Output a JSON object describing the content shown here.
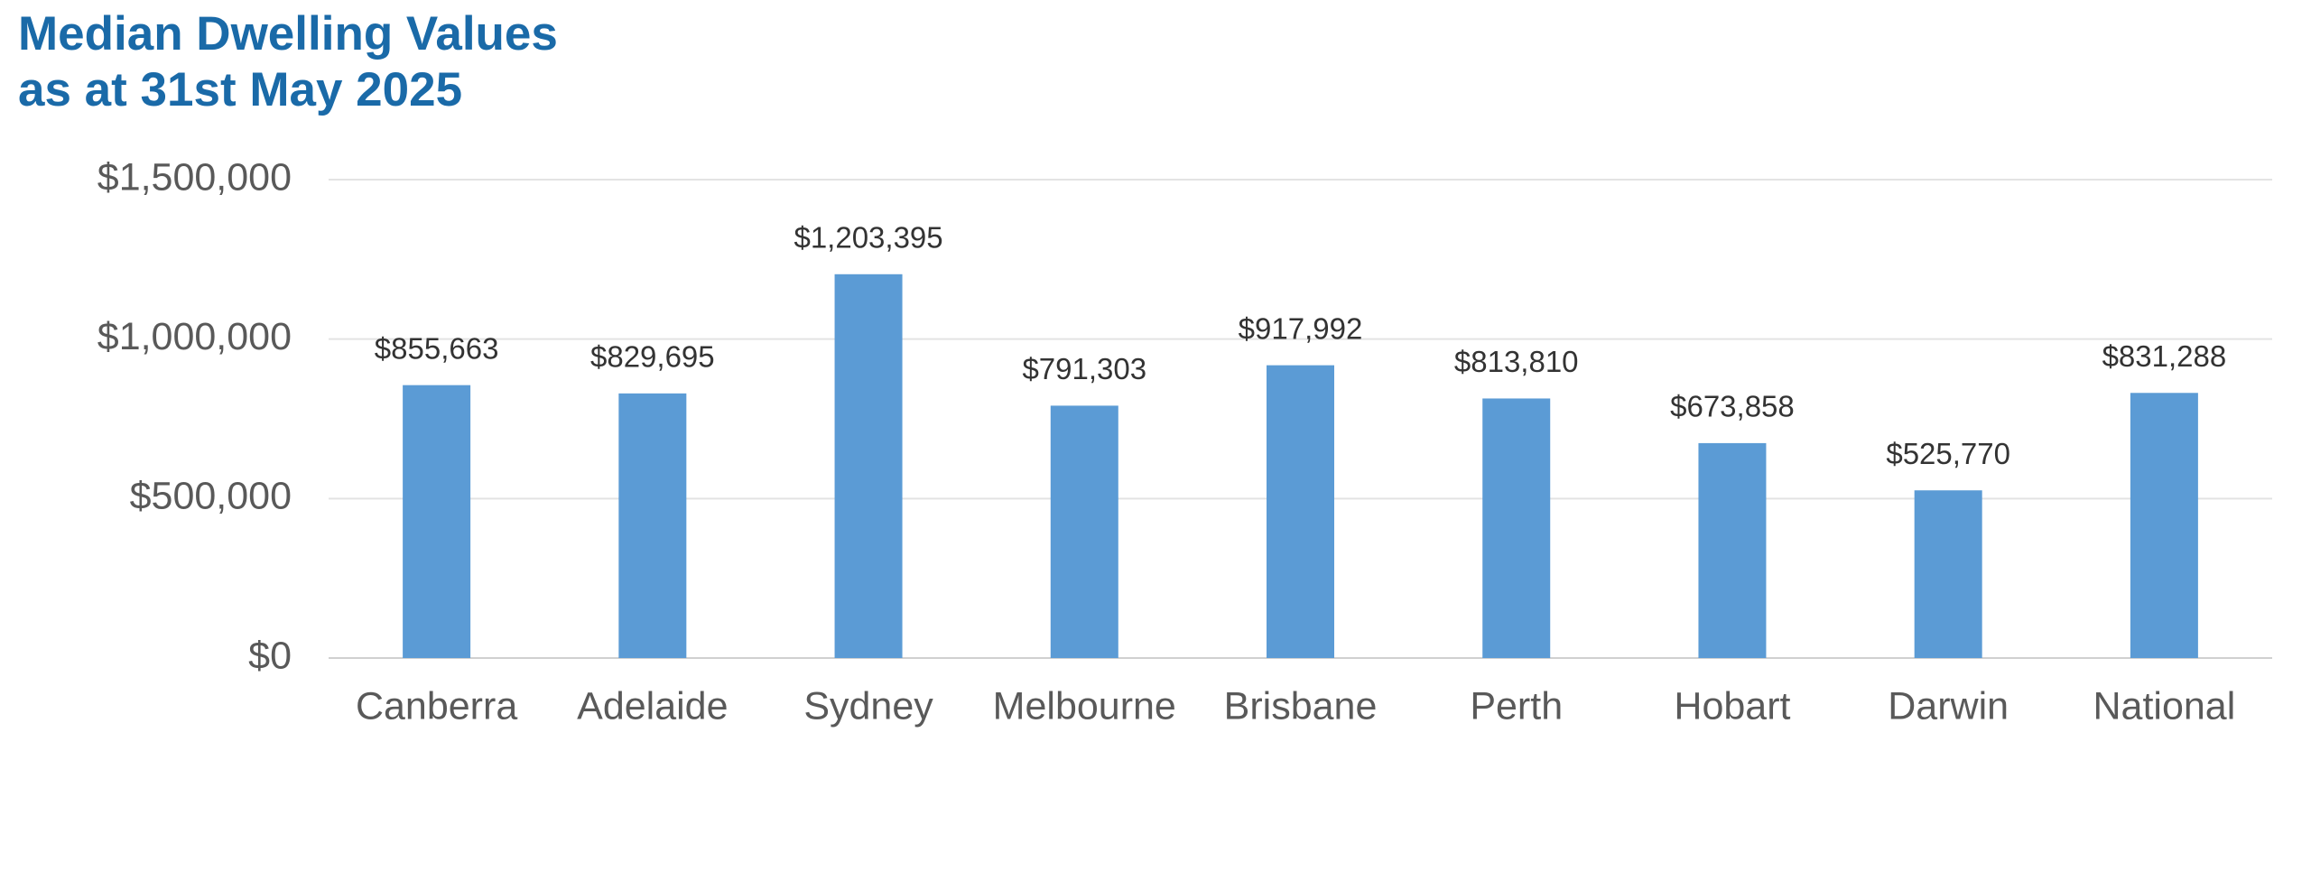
{
  "chart_data": {
    "type": "bar",
    "title": [
      "Median Dwelling Values",
      "as at 31st May 2025"
    ],
    "categories": [
      "Canberra",
      "Adelaide",
      "Sydney",
      "Melbourne",
      "Brisbane",
      "Perth",
      "Hobart",
      "Darwin",
      "National"
    ],
    "values": [
      855663,
      829695,
      1203395,
      791303,
      917992,
      813810,
      673858,
      525770,
      831288
    ],
    "value_labels": [
      "$855,663",
      "$829,695",
      "$1,203,395",
      "$791,303",
      "$917,992",
      "$813,810",
      "$673,858",
      "$525,770",
      "$831,288"
    ],
    "color": "#5b9bd5",
    "ylim": [
      0,
      1500000
    ],
    "yticks": [
      {
        "value": 0,
        "label": "$0"
      },
      {
        "value": 500000,
        "label": "$500,000"
      },
      {
        "value": 1000000,
        "label": "$1,000,000"
      },
      {
        "value": 1500000,
        "label": "$1,500,000"
      }
    ],
    "grid": true
  }
}
